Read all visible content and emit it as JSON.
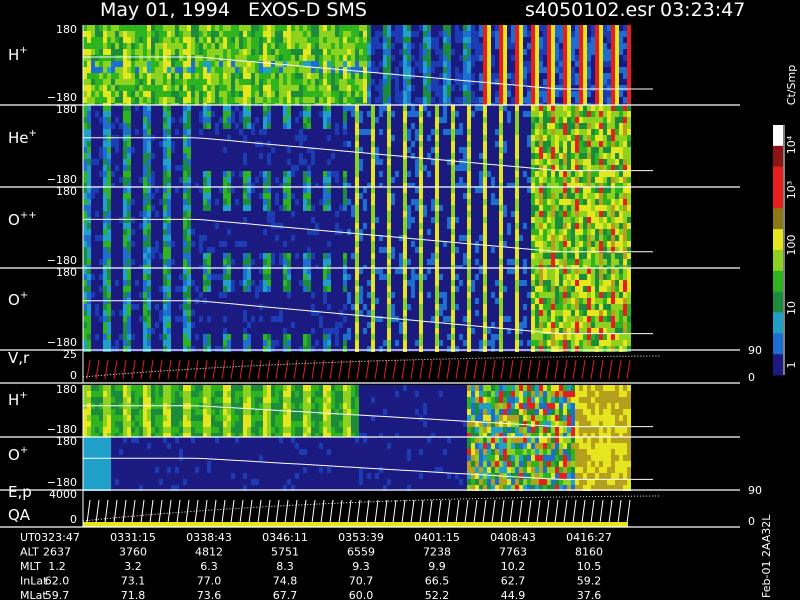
{
  "header": {
    "title": "May 01, 1994   EXOS-D SMS",
    "file": "s4050102.esr",
    "time": "03:23:47"
  },
  "panels": [
    {
      "label": "H",
      "sup": "+",
      "top": "180",
      "bottom": "−180"
    },
    {
      "label": "He",
      "sup": "+",
      "top": "180",
      "bottom": "−180"
    },
    {
      "label": "O",
      "sup": "++",
      "top": "180",
      "bottom": "−180"
    },
    {
      "label": "O",
      "sup": "+",
      "top": "180",
      "bottom": "−180"
    },
    {
      "label": "V,r",
      "top": "25",
      "bottom": "0",
      "right_top": "90",
      "right_bottom": "0"
    },
    {
      "label": "H",
      "sup": "+",
      "top": "180",
      "bottom": "−180"
    },
    {
      "label": "O",
      "sup": "+",
      "top": "180",
      "bottom": "−180"
    },
    {
      "label": "E,p",
      "label2": "QA",
      "top": "4000",
      "bottom": "0",
      "right_top": "90",
      "right_bottom": "0"
    }
  ],
  "colorbar": {
    "unit": "Ct/Smp",
    "ticks": [
      "10⁴",
      "10³",
      "100",
      "10",
      "1"
    ]
  },
  "table": {
    "rows": [
      [
        "UT",
        "0323:47",
        "0331:15",
        "0338:43",
        "0346:11",
        "0353:39",
        "0401:15",
        "0408:43",
        "0416:27"
      ],
      [
        "ALT",
        "2637",
        "3760",
        "4812",
        "5751",
        "6559",
        "7238",
        "7763",
        "8160"
      ],
      [
        "MLT",
        "1.2",
        "3.2",
        "6.3",
        "8.3",
        "9.3",
        "9.9",
        "10.2",
        "10.5"
      ],
      [
        "InLat",
        "62.0",
        "73.1",
        "77.0",
        "74.8",
        "70.7",
        "66.5",
        "62.7",
        "59.2"
      ],
      [
        "MLat",
        "59.7",
        "71.8",
        "73.6",
        "67.7",
        "60.0",
        "52.2",
        "44.9",
        "37.6"
      ]
    ]
  },
  "footer": "Feb-01 2AA32L"
}
